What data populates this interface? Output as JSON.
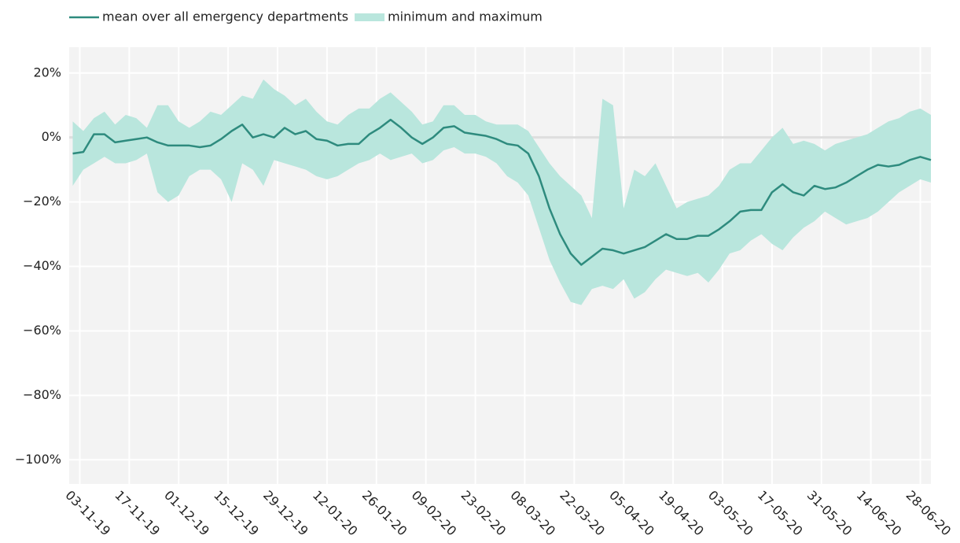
{
  "chart_data": {
    "type": "line",
    "x": [
      "01-11-19",
      "04-11-19",
      "07-11-19",
      "10-11-19",
      "13-11-19",
      "16-11-19",
      "19-11-19",
      "22-11-19",
      "25-11-19",
      "28-11-19",
      "01-12-19",
      "04-12-19",
      "07-12-19",
      "10-12-19",
      "13-12-19",
      "16-12-19",
      "19-12-19",
      "22-12-19",
      "25-12-19",
      "28-12-19",
      "31-12-19",
      "03-01-20",
      "06-01-20",
      "09-01-20",
      "12-01-20",
      "15-01-20",
      "18-01-20",
      "21-01-20",
      "24-01-20",
      "27-01-20",
      "30-01-20",
      "02-02-20",
      "05-02-20",
      "08-02-20",
      "11-02-20",
      "14-02-20",
      "17-02-20",
      "20-02-20",
      "23-02-20",
      "26-02-20",
      "29-02-20",
      "03-03-20",
      "06-03-20",
      "09-03-20",
      "12-03-20",
      "15-03-20",
      "18-03-20",
      "21-03-20",
      "24-03-20",
      "27-03-20",
      "30-03-20",
      "02-04-20",
      "05-04-20",
      "08-04-20",
      "11-04-20",
      "14-04-20",
      "17-04-20",
      "20-04-20",
      "23-04-20",
      "26-04-20",
      "29-04-20",
      "02-05-20",
      "05-05-20",
      "08-05-20",
      "11-05-20",
      "14-05-20",
      "17-05-20",
      "20-05-20",
      "23-05-20",
      "26-05-20",
      "29-05-20",
      "01-06-20",
      "04-06-20",
      "07-06-20",
      "10-06-20",
      "13-06-20",
      "16-06-20",
      "19-06-20",
      "22-06-20",
      "25-06-20",
      "28-06-20",
      "01-07-20"
    ],
    "series": [
      {
        "name": "mean over all emergency departments",
        "type": "line",
        "color": "#2e8b7e",
        "values": [
          -5,
          -4.5,
          1,
          1,
          -1.5,
          -1,
          -0.5,
          0,
          -1.5,
          -2.5,
          -2.5,
          -2.5,
          -3,
          -2.5,
          -0.5,
          2,
          4,
          0,
          1,
          0,
          3,
          1,
          2,
          -0.5,
          -1,
          -2.5,
          -2,
          -2,
          1,
          3,
          5.5,
          3,
          0,
          -2,
          0,
          3,
          3.5,
          1.5,
          1,
          0.5,
          -0.5,
          -2,
          -2.5,
          -5,
          -12,
          -22,
          -30,
          -36,
          -39.5,
          -37,
          -34.5,
          -35,
          -36,
          -35,
          -34,
          -32,
          -30,
          -31.5,
          -31.5,
          -30.5,
          -30.5,
          -28.5,
          -26,
          -23,
          -22.5,
          -22.5,
          -17,
          -14.5,
          -17,
          -18,
          -15,
          -16,
          -15.5,
          -14,
          -12,
          -10,
          -8.5,
          -9,
          -8.5,
          -7,
          -6,
          -7
        ]
      },
      {
        "name": "minimum and maximum",
        "type": "band",
        "color": "#b9e6dd",
        "lower": [
          -15,
          -10,
          -8,
          -6,
          -8,
          -8,
          -7,
          -5,
          -17,
          -20,
          -18,
          -12,
          -10,
          -10,
          -13,
          -20,
          -8,
          -10,
          -15,
          -7,
          -8,
          -9,
          -10,
          -12,
          -13,
          -12,
          -10,
          -8,
          -7,
          -5,
          -7,
          -6,
          -5,
          -8,
          -7,
          -4,
          -3,
          -5,
          -5,
          -6,
          -8,
          -12,
          -14,
          -18,
          -28,
          -38,
          -45,
          -51,
          -52,
          -47,
          -46,
          -47,
          -44,
          -50,
          -48,
          -44,
          -41,
          -42,
          -43,
          -42,
          -45,
          -41,
          -36,
          -35,
          -32,
          -30,
          -33,
          -35,
          -31,
          -28,
          -26,
          -23,
          -25,
          -27,
          -26,
          -25,
          -23,
          -20,
          -17,
          -15,
          -13,
          -14
        ],
        "upper": [
          5,
          2,
          6,
          8,
          4,
          7,
          6,
          3,
          10,
          10,
          5,
          3,
          5,
          8,
          7,
          10,
          13,
          12,
          18,
          15,
          13,
          10,
          12,
          8,
          5,
          4,
          7,
          9,
          9,
          12,
          14,
          11,
          8,
          4,
          5,
          10,
          10,
          7,
          7,
          5,
          4,
          4,
          4,
          2,
          -3,
          -8,
          -12,
          -15,
          -18,
          -25,
          12,
          10,
          -22,
          -10,
          -12,
          -8,
          -15,
          -22,
          -20,
          -19,
          -18,
          -15,
          -10,
          -8,
          -8,
          -4,
          0,
          3,
          -2,
          -1,
          -2,
          -4,
          -2,
          -1,
          0,
          1,
          3,
          5,
          6,
          8,
          9,
          7
        ]
      }
    ],
    "xlim": [
      "31-10-19",
      "01-07-20"
    ],
    "xticks": [
      "03-11-19",
      "17-11-19",
      "01-12-19",
      "15-12-19",
      "29-12-19",
      "12-01-20",
      "26-01-20",
      "09-02-20",
      "23-02-20",
      "08-03-20",
      "22-03-20",
      "05-04-20",
      "19-04-20",
      "03-05-20",
      "17-05-20",
      "31-05-20",
      "14-06-20",
      "28-06-20"
    ],
    "ylim": [
      -107.5,
      28
    ],
    "yticks": [
      {
        "value": 20,
        "label": "20%"
      },
      {
        "value": 0,
        "label": "0%"
      },
      {
        "value": -20,
        "label": "−20%"
      },
      {
        "value": -40,
        "label": "−40%"
      },
      {
        "value": -60,
        "label": "−60%"
      },
      {
        "value": -80,
        "label": "−80%"
      },
      {
        "value": -100,
        "label": "−100%"
      }
    ],
    "grid": true,
    "legend": "top"
  }
}
